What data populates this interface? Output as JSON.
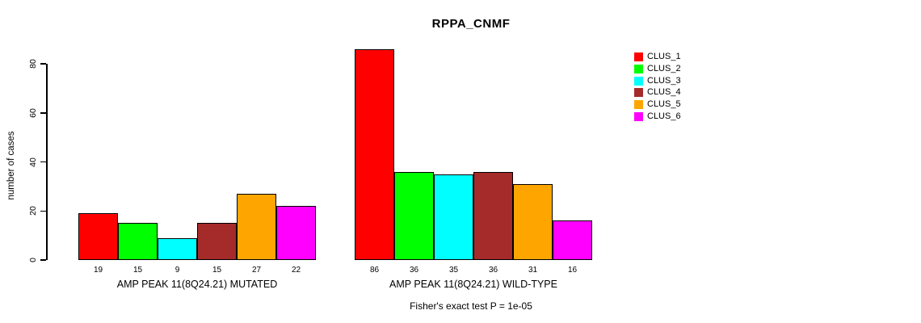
{
  "chart_data": {
    "type": "bar",
    "title": "RPPA_CNMF",
    "ylabel": "number of cases",
    "xlabel": "",
    "ylim": [
      0,
      86
    ],
    "yticks": [
      0,
      20,
      40,
      60,
      80
    ],
    "grid": false,
    "annotation": "Fisher's exact test P = 1e-05",
    "series_labels": [
      "CLUS_1",
      "CLUS_2",
      "CLUS_3",
      "CLUS_4",
      "CLUS_5",
      "CLUS_6"
    ],
    "colors": [
      "#FF0000",
      "#00FF00",
      "#00FFFF",
      "#A52A2A",
      "#FFA500",
      "#FF00FF"
    ],
    "groups": [
      {
        "label": "AMP PEAK 11(8Q24.21) MUTATED",
        "values": [
          19,
          15,
          9,
          15,
          27,
          22
        ]
      },
      {
        "label": "AMP PEAK 11(8Q24.21) WILD-TYPE",
        "values": [
          86,
          36,
          35,
          36,
          31,
          16
        ]
      }
    ],
    "legend": {
      "position": "right",
      "entries": [
        {
          "label": "CLUS_1",
          "color": "#FF0000"
        },
        {
          "label": "CLUS_2",
          "color": "#00FF00"
        },
        {
          "label": "CLUS_3",
          "color": "#00FFFF"
        },
        {
          "label": "CLUS_4",
          "color": "#A52A2A"
        },
        {
          "label": "CLUS_5",
          "color": "#FFA500"
        },
        {
          "label": "CLUS_6",
          "color": "#FF00FF"
        }
      ]
    }
  }
}
